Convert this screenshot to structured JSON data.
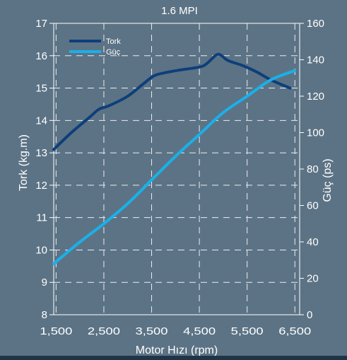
{
  "chart_data": {
    "type": "line",
    "title": "1.6 MPI",
    "xlabel": "Motor Hızı (rpm)",
    "ylabel_left": "Tork (kg.m)",
    "ylabel_right": "Güç (ps)",
    "x_ticks": [
      "1,500",
      "2,500",
      "3,500",
      "4,500",
      "5,500",
      "6,500"
    ],
    "x_tick_values": [
      1500,
      2500,
      3500,
      4500,
      5500,
      6500
    ],
    "xlim": [
      1450,
      6600
    ],
    "ylim_left": [
      8,
      17
    ],
    "ylim_right": [
      0,
      160
    ],
    "y_ticks_left": [
      "8",
      "9",
      "10",
      "11",
      "12",
      "13",
      "14",
      "15",
      "16",
      "17"
    ],
    "y_tick_values_left": [
      8,
      9,
      10,
      11,
      12,
      13,
      14,
      15,
      16,
      17
    ],
    "y_ticks_right": [
      "0",
      "20",
      "40",
      "60",
      "80",
      "100",
      "120",
      "140",
      "160"
    ],
    "y_tick_values_right": [
      0,
      20,
      40,
      60,
      80,
      100,
      120,
      140,
      160
    ],
    "grid": true,
    "legend_position": "top-left",
    "series": [
      {
        "name": "Tork",
        "axis": "left",
        "color": "#0e3f7a",
        "x": [
          1450,
          1800,
          2200,
          2400,
          2600,
          3000,
          3300,
          3550,
          3800,
          4100,
          4500,
          4650,
          4850,
          4950,
          5100,
          5400,
          5700,
          6000,
          6400
        ],
        "y": [
          13.1,
          13.6,
          14.1,
          14.35,
          14.45,
          14.75,
          15.1,
          15.38,
          15.48,
          15.56,
          15.65,
          15.75,
          16.02,
          16.02,
          15.85,
          15.7,
          15.5,
          15.25,
          15.0
        ]
      },
      {
        "name": "Güç",
        "axis": "right",
        "color": "#1ab0ea",
        "x": [
          1450,
          2000,
          2500,
          3000,
          3500,
          4000,
          4500,
          5000,
          5500,
          6000,
          6500
        ],
        "y": [
          28,
          40,
          50,
          61,
          74,
          87,
          99,
          111,
          120,
          129,
          134
        ]
      }
    ]
  }
}
